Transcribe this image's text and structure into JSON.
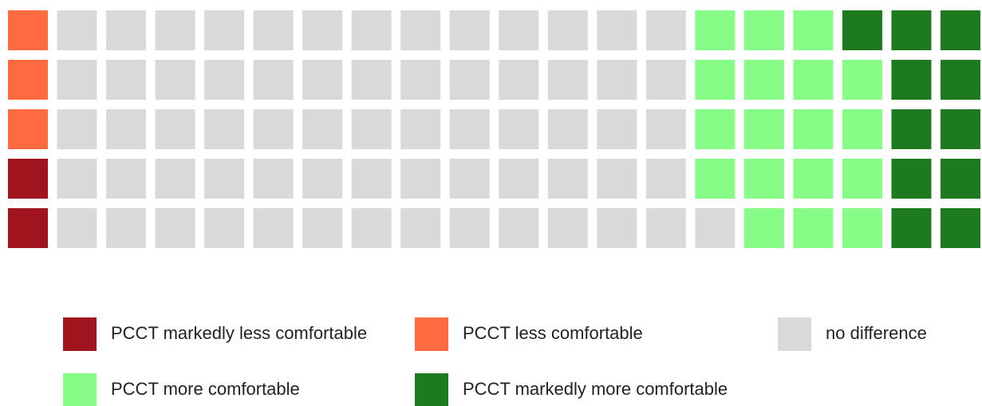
{
  "chart_data": {
    "type": "waffle",
    "categories": [
      "PCCT markedly less comfortable",
      "PCCT less comfortable",
      "no difference",
      "PCCT more comfortable",
      "PCCT markedly more comfortable"
    ],
    "values": [
      2,
      3,
      66,
      18,
      11
    ],
    "colors": [
      "#a0141e",
      "#ff6a40",
      "#d9d9d9",
      "#87fc87",
      "#1e7a1e"
    ],
    "rows": 5
  }
}
